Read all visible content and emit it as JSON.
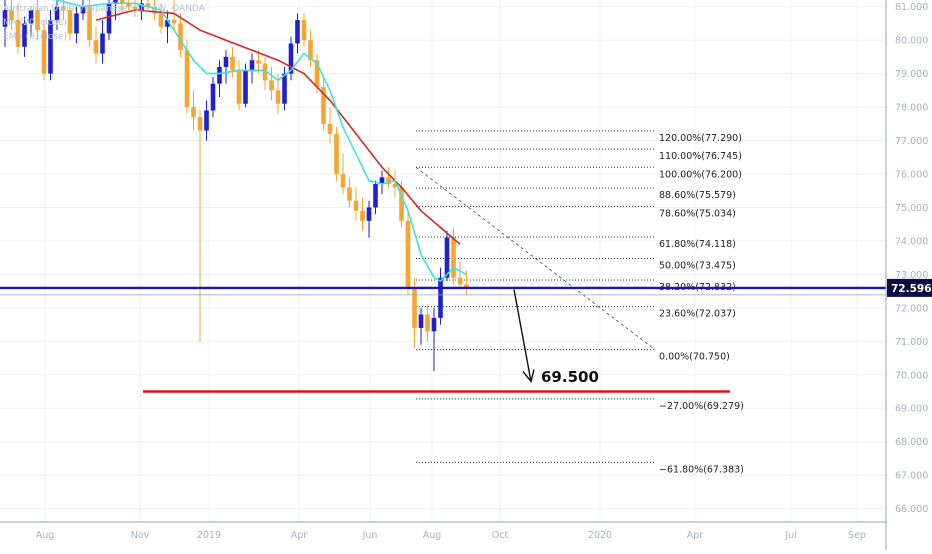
{
  "legend": {
    "line1": "Australian Dollar / Japanese Yen, 1W, OANDA",
    "line2": "MA (20, close)",
    "line3": "EMA (8, close)"
  },
  "price_badge": "72.596",
  "target_label": "69.500",
  "colors": {
    "up": "#2020d0",
    "down": "#f7a531",
    "ma": "#d62728",
    "ema": "#40e0e0",
    "hline": "#1515b8",
    "target": "#e01010",
    "grid": "#eef1f4",
    "axis_text": "#a8b0b8"
  },
  "chart_data": {
    "type": "candlestick",
    "ylim": [
      65.6,
      81.2
    ],
    "y_ticks": [
      66.0,
      67.0,
      68.0,
      69.0,
      70.0,
      71.0,
      72.0,
      73.0,
      74.0,
      75.0,
      76.0,
      77.0,
      78.0,
      79.0,
      80.0,
      81.0
    ],
    "x_ticks": [
      "Aug",
      "Nov",
      "2019",
      "Apr",
      "Jun",
      "Aug",
      "Oct",
      "2020",
      "Apr",
      "Jul",
      "Sep"
    ],
    "current_price": 72.596,
    "target_level": 69.5,
    "fibonacci": {
      "levels": [
        {
          "label": "120.00%(77.290)",
          "value": 77.29
        },
        {
          "label": "110.00%(76.745)",
          "value": 76.745
        },
        {
          "label": "100.00%(76.200)",
          "value": 76.2
        },
        {
          "label": "88.60%(75.579)",
          "value": 75.579
        },
        {
          "label": "78.60%(75.034)",
          "value": 75.034
        },
        {
          "label": "61.80%(74.118)",
          "value": 74.118
        },
        {
          "label": "50.00%(73.475)",
          "value": 73.475
        },
        {
          "label": "38.20%(72.832)",
          "value": 72.832
        },
        {
          "label": "23.60%(72.037)",
          "value": 72.037
        },
        {
          "label": "0.00%(70.750)",
          "value": 70.75
        },
        {
          "label": "−27.00%(69.279)",
          "value": 69.279
        },
        {
          "label": "−61.80%(67.383)",
          "value": 67.383
        }
      ]
    },
    "candles": [
      {
        "o": 80.4,
        "h": 81.2,
        "l": 79.8,
        "c": 80.9
      },
      {
        "o": 80.9,
        "h": 81.3,
        "l": 80.3,
        "c": 80.6
      },
      {
        "o": 80.6,
        "h": 81.1,
        "l": 79.6,
        "c": 79.8
      },
      {
        "o": 79.8,
        "h": 80.7,
        "l": 79.5,
        "c": 80.5
      },
      {
        "o": 80.5,
        "h": 81.0,
        "l": 80.1,
        "c": 80.9
      },
      {
        "o": 80.9,
        "h": 81.2,
        "l": 80.0,
        "c": 80.3
      },
      {
        "o": 80.3,
        "h": 80.6,
        "l": 78.8,
        "c": 79.0
      },
      {
        "o": 79.0,
        "h": 80.9,
        "l": 78.8,
        "c": 80.6
      },
      {
        "o": 80.6,
        "h": 81.2,
        "l": 80.3,
        "c": 81.0
      },
      {
        "o": 81.0,
        "h": 81.4,
        "l": 80.6,
        "c": 80.9
      },
      {
        "o": 80.9,
        "h": 81.1,
        "l": 80.0,
        "c": 80.2
      },
      {
        "o": 80.2,
        "h": 81.0,
        "l": 79.9,
        "c": 80.8
      },
      {
        "o": 80.8,
        "h": 81.2,
        "l": 80.6,
        "c": 81.0
      },
      {
        "o": 81.0,
        "h": 81.3,
        "l": 79.8,
        "c": 80.0
      },
      {
        "o": 80.0,
        "h": 80.4,
        "l": 79.3,
        "c": 79.6
      },
      {
        "o": 79.6,
        "h": 80.6,
        "l": 79.3,
        "c": 80.2
      },
      {
        "o": 80.2,
        "h": 81.2,
        "l": 80.0,
        "c": 81.1
      },
      {
        "o": 81.1,
        "h": 81.4,
        "l": 80.6,
        "c": 81.2
      },
      {
        "o": 81.2,
        "h": 81.4,
        "l": 80.8,
        "c": 81.1
      },
      {
        "o": 81.1,
        "h": 81.3,
        "l": 80.9,
        "c": 81.0
      },
      {
        "o": 81.0,
        "h": 81.5,
        "l": 80.7,
        "c": 80.9
      },
      {
        "o": 80.9,
        "h": 81.2,
        "l": 80.6,
        "c": 81.1
      },
      {
        "o": 81.1,
        "h": 81.3,
        "l": 80.9,
        "c": 81.0
      },
      {
        "o": 81.0,
        "h": 81.2,
        "l": 80.6,
        "c": 80.8
      },
      {
        "o": 80.8,
        "h": 81.1,
        "l": 80.2,
        "c": 80.4
      },
      {
        "o": 80.4,
        "h": 80.9,
        "l": 79.9,
        "c": 80.6
      },
      {
        "o": 80.6,
        "h": 81.2,
        "l": 80.3,
        "c": 80.5
      },
      {
        "o": 80.5,
        "h": 80.8,
        "l": 79.5,
        "c": 79.7
      },
      {
        "o": 79.7,
        "h": 80.0,
        "l": 77.8,
        "c": 78.0
      },
      {
        "o": 78.0,
        "h": 78.5,
        "l": 77.3,
        "c": 77.7
      },
      {
        "o": 77.7,
        "h": 77.9,
        "l": 71.0,
        "c": 77.3
      },
      {
        "o": 77.3,
        "h": 78.2,
        "l": 77.0,
        "c": 77.9
      },
      {
        "o": 77.9,
        "h": 78.9,
        "l": 77.7,
        "c": 78.7
      },
      {
        "o": 78.7,
        "h": 79.4,
        "l": 78.3,
        "c": 79.2
      },
      {
        "o": 79.2,
        "h": 79.7,
        "l": 78.7,
        "c": 79.5
      },
      {
        "o": 79.5,
        "h": 79.8,
        "l": 78.9,
        "c": 79.1
      },
      {
        "o": 79.1,
        "h": 79.4,
        "l": 77.9,
        "c": 78.1
      },
      {
        "o": 78.1,
        "h": 79.3,
        "l": 78.0,
        "c": 79.1
      },
      {
        "o": 79.1,
        "h": 79.6,
        "l": 78.7,
        "c": 79.4
      },
      {
        "o": 79.4,
        "h": 79.7,
        "l": 79.0,
        "c": 79.3
      },
      {
        "o": 79.3,
        "h": 79.5,
        "l": 78.5,
        "c": 78.8
      },
      {
        "o": 78.8,
        "h": 79.2,
        "l": 78.2,
        "c": 78.5
      },
      {
        "o": 78.5,
        "h": 79.0,
        "l": 77.8,
        "c": 78.1
      },
      {
        "o": 78.1,
        "h": 79.2,
        "l": 77.9,
        "c": 79.0
      },
      {
        "o": 79.0,
        "h": 80.1,
        "l": 78.8,
        "c": 79.9
      },
      {
        "o": 79.9,
        "h": 80.8,
        "l": 79.6,
        "c": 80.6
      },
      {
        "o": 80.6,
        "h": 80.8,
        "l": 79.8,
        "c": 80.0
      },
      {
        "o": 80.0,
        "h": 80.3,
        "l": 79.2,
        "c": 79.4
      },
      {
        "o": 79.4,
        "h": 79.6,
        "l": 78.4,
        "c": 78.6
      },
      {
        "o": 78.6,
        "h": 78.9,
        "l": 77.3,
        "c": 77.5
      },
      {
        "o": 77.5,
        "h": 78.0,
        "l": 76.9,
        "c": 77.2
      },
      {
        "o": 77.2,
        "h": 77.4,
        "l": 75.8,
        "c": 76.0
      },
      {
        "o": 76.0,
        "h": 76.6,
        "l": 75.4,
        "c": 75.6
      },
      {
        "o": 75.6,
        "h": 75.9,
        "l": 75.0,
        "c": 75.2
      },
      {
        "o": 75.2,
        "h": 75.6,
        "l": 74.6,
        "c": 74.9
      },
      {
        "o": 74.9,
        "h": 75.3,
        "l": 74.3,
        "c": 74.6
      },
      {
        "o": 74.6,
        "h": 75.2,
        "l": 74.1,
        "c": 75.0
      },
      {
        "o": 75.0,
        "h": 75.8,
        "l": 74.8,
        "c": 75.7
      },
      {
        "o": 75.7,
        "h": 76.1,
        "l": 75.4,
        "c": 75.9
      },
      {
        "o": 75.9,
        "h": 76.2,
        "l": 75.6,
        "c": 75.7
      },
      {
        "o": 75.7,
        "h": 76.1,
        "l": 75.3,
        "c": 75.6
      },
      {
        "o": 75.6,
        "h": 75.8,
        "l": 74.4,
        "c": 74.6
      },
      {
        "o": 74.6,
        "h": 74.9,
        "l": 72.4,
        "c": 72.6
      },
      {
        "o": 72.6,
        "h": 72.9,
        "l": 70.8,
        "c": 71.4
      },
      {
        "o": 71.4,
        "h": 72.0,
        "l": 70.9,
        "c": 71.8
      },
      {
        "o": 71.8,
        "h": 72.1,
        "l": 71.0,
        "c": 71.3
      },
      {
        "o": 71.3,
        "h": 72.0,
        "l": 70.1,
        "c": 71.7
      },
      {
        "o": 71.7,
        "h": 73.2,
        "l": 71.5,
        "c": 72.9
      },
      {
        "o": 72.9,
        "h": 74.3,
        "l": 72.8,
        "c": 74.1
      },
      {
        "o": 74.1,
        "h": 74.4,
        "l": 72.7,
        "c": 72.9
      },
      {
        "o": 72.9,
        "h": 73.4,
        "l": 72.6,
        "c": 72.7
      },
      {
        "o": 72.7,
        "h": 73.1,
        "l": 72.4,
        "c": 72.6
      }
    ],
    "ma_20": [
      {
        "i": 14,
        "v": 80.6
      },
      {
        "i": 20,
        "v": 80.9
      },
      {
        "i": 26,
        "v": 80.8
      },
      {
        "i": 30,
        "v": 80.3
      },
      {
        "i": 34,
        "v": 80.0
      },
      {
        "i": 38,
        "v": 79.7
      },
      {
        "i": 42,
        "v": 79.4
      },
      {
        "i": 46,
        "v": 79.0
      },
      {
        "i": 50,
        "v": 78.2
      },
      {
        "i": 54,
        "v": 77.2
      },
      {
        "i": 58,
        "v": 76.2
      },
      {
        "i": 61,
        "v": 75.6
      },
      {
        "i": 64,
        "v": 74.9
      },
      {
        "i": 67,
        "v": 74.4
      },
      {
        "i": 70,
        "v": 73.9
      }
    ],
    "ema_8": [
      {
        "i": 0,
        "v": 81.4
      },
      {
        "i": 4,
        "v": 81.3
      },
      {
        "i": 8,
        "v": 81.2
      },
      {
        "i": 12,
        "v": 81.0
      },
      {
        "i": 16,
        "v": 81.1
      },
      {
        "i": 20,
        "v": 81.1
      },
      {
        "i": 24,
        "v": 80.9
      },
      {
        "i": 27,
        "v": 80.0
      },
      {
        "i": 29,
        "v": 79.4
      },
      {
        "i": 31,
        "v": 79.0
      },
      {
        "i": 33,
        "v": 79.0
      },
      {
        "i": 36,
        "v": 79.1
      },
      {
        "i": 40,
        "v": 79.1
      },
      {
        "i": 42,
        "v": 78.8
      },
      {
        "i": 44,
        "v": 79.1
      },
      {
        "i": 46,
        "v": 79.6
      },
      {
        "i": 48,
        "v": 79.3
      },
      {
        "i": 50,
        "v": 78.5
      },
      {
        "i": 52,
        "v": 77.4
      },
      {
        "i": 54,
        "v": 76.6
      },
      {
        "i": 56,
        "v": 75.8
      },
      {
        "i": 58,
        "v": 75.7
      },
      {
        "i": 60,
        "v": 75.8
      },
      {
        "i": 62,
        "v": 74.9
      },
      {
        "i": 64,
        "v": 73.6
      },
      {
        "i": 66,
        "v": 72.9
      },
      {
        "i": 67,
        "v": 72.8
      },
      {
        "i": 69,
        "v": 73.2
      },
      {
        "i": 71,
        "v": 73.0
      }
    ]
  }
}
